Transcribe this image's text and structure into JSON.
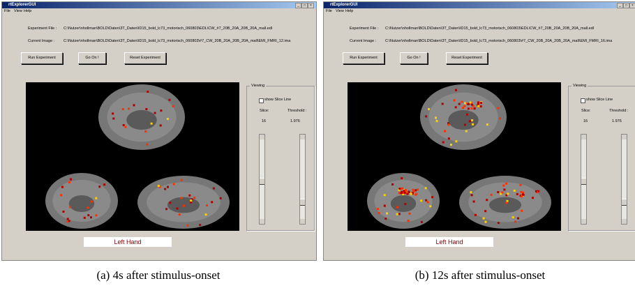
{
  "panels": [
    {
      "window_title": "rtExplorerGUI",
      "menu": [
        "File",
        "View",
        "Help"
      ],
      "experiment_file_label": "Experiment File :",
      "experiment_file": "C:\\Nutzer\\nhollman\\BOLD\\Daten\\3T_Daten\\ID15_bold_lc73_motorisch_060803\\EDL\\CW_#7_20B_20A_20B_20A_mall.edl",
      "current_image_label": "Current Image :",
      "current_image": "C:\\Nutzer\\nhollman\\BOLD\\Daten\\3T_Daten\\ID15_bold_lc73_motorisch_060803\\#7_CW_20B_20A_20B_20A_mall\\EMI_FMRI_12.ima",
      "buttons": [
        "Run Experiment",
        "Go On !",
        "Reset Experiment"
      ],
      "viewing": {
        "title": "Viewing",
        "show_slice_line": "show Slice Line",
        "slice_label": "Slice:",
        "threshold_label": "Threshold :",
        "slice": "16",
        "threshold": "1.976"
      },
      "condition": "Left Hand",
      "caption": "(a) 4s after stimulus-onset"
    },
    {
      "window_title": "rtExplorerGUI",
      "menu": [
        "File",
        "View",
        "Help"
      ],
      "experiment_file_label": "Experiment File :",
      "experiment_file": "C:\\Nutzer\\nhollman\\BOLD\\Daten\\3T_Daten\\ID15_bold_lc73_motorisch_060803\\EDL\\CW_#7_20B_20A_20B_20A_mall.edl",
      "current_image_label": "Current Image :",
      "current_image": "C:\\Nutzer\\nhollman\\BOLD\\Daten\\3T_Daten\\ID15_bold_lc73_motorisch_060803\\#7_CW_20B_20A_20B_20A_mall\\EMI_FMRI_16.ima",
      "buttons": [
        "Run Experiment",
        "Go On !",
        "Reset Experiment"
      ],
      "viewing": {
        "title": "Viewing",
        "show_slice_line": "show Slice Line",
        "slice_label": "Slice:",
        "threshold_label": "Threshold :",
        "slice": "16",
        "threshold": "1.976"
      },
      "condition": "Left Hand",
      "caption": "(b) 12s after stimulus-onset"
    }
  ]
}
